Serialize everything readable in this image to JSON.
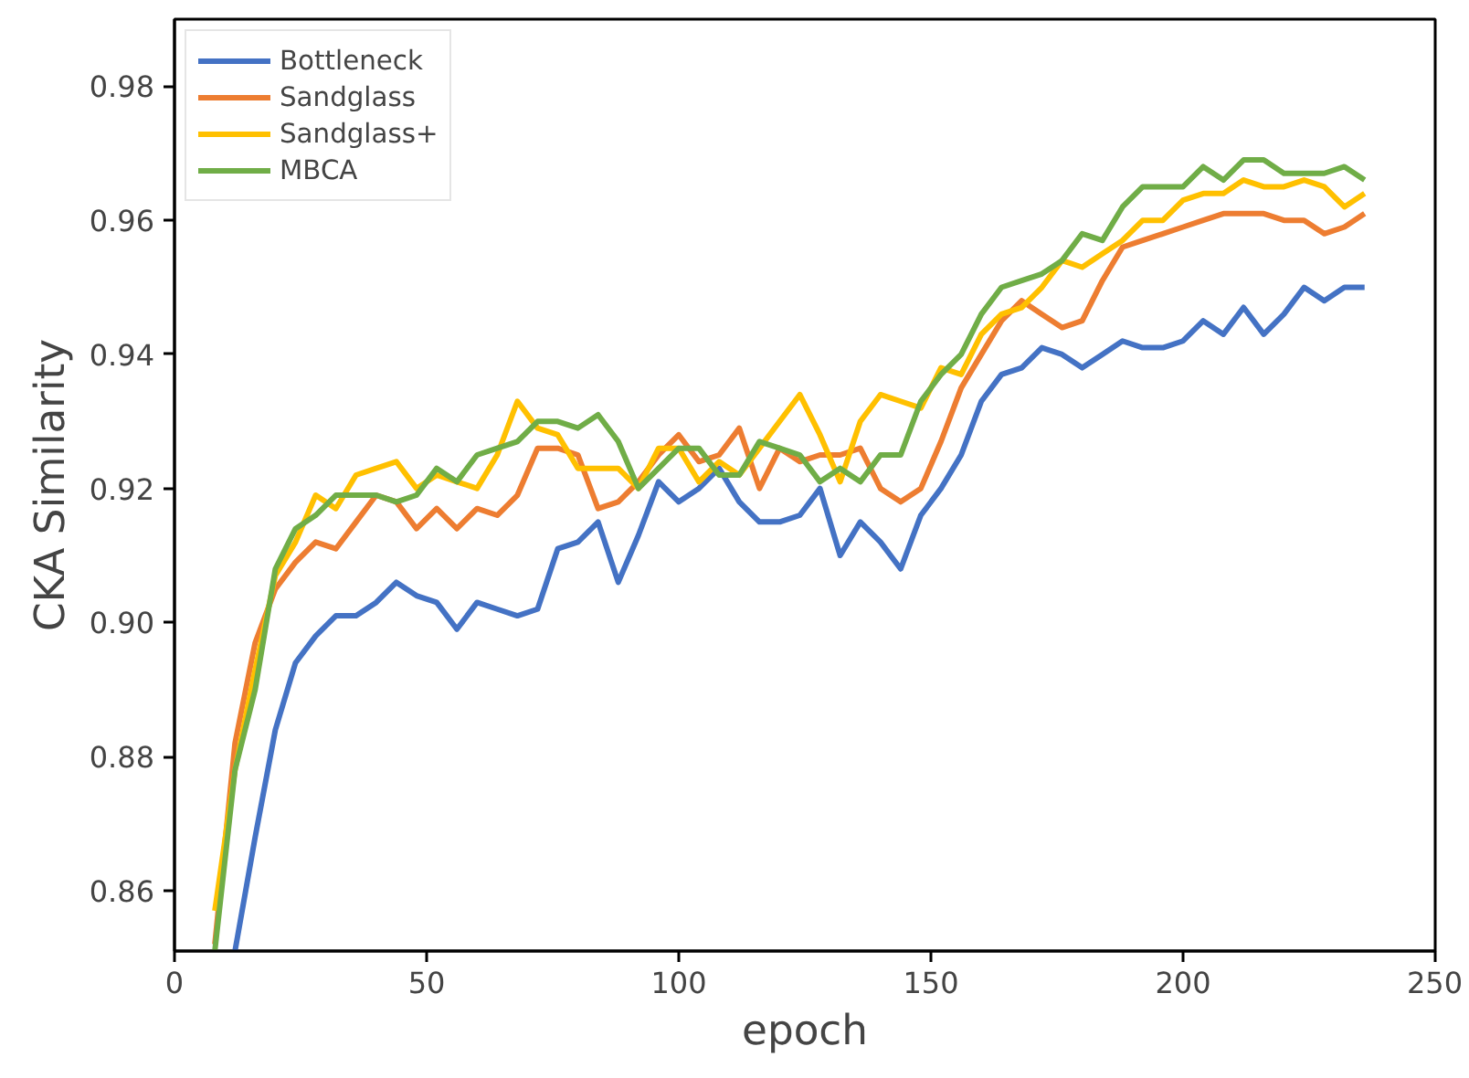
{
  "chart_data": {
    "type": "line",
    "xlabel": "epoch",
    "ylabel": "CKA Similarity",
    "x": [
      8,
      12,
      16,
      20,
      24,
      28,
      32,
      36,
      40,
      44,
      48,
      52,
      56,
      60,
      64,
      68,
      72,
      76,
      80,
      84,
      88,
      92,
      96,
      100,
      104,
      108,
      112,
      116,
      120,
      124,
      128,
      132,
      136,
      140,
      144,
      148,
      152,
      156,
      160,
      164,
      168,
      172,
      176,
      180,
      184,
      188,
      192,
      196,
      200,
      204,
      208,
      212,
      216,
      220,
      224,
      228,
      232,
      236
    ],
    "xlim": [
      0,
      250
    ],
    "xticks": [
      0,
      50,
      100,
      150,
      200,
      250
    ],
    "ylim": [
      0.851,
      0.99
    ],
    "yticks": [
      {
        "value": 0.86,
        "label": "0.86"
      },
      {
        "value": 0.88,
        "label": "0.88"
      },
      {
        "value": 0.9,
        "label": "0.90"
      },
      {
        "value": 0.92,
        "label": "0.92"
      },
      {
        "value": 0.94,
        "label": "0.94"
      },
      {
        "value": 0.96,
        "label": "0.96"
      },
      {
        "value": 0.98,
        "label": "0.98"
      }
    ],
    "grid": false,
    "legend": "top left",
    "line_style": "solid",
    "marker": "none",
    "series": [
      {
        "name": "Bottleneck",
        "color": "#4472c4",
        "values": [
          null,
          0.851,
          0.868,
          0.884,
          0.894,
          0.898,
          0.901,
          0.901,
          0.903,
          0.906,
          0.904,
          0.903,
          0.899,
          0.903,
          0.902,
          0.901,
          0.902,
          0.911,
          0.912,
          0.915,
          0.906,
          0.913,
          0.921,
          0.918,
          0.92,
          0.923,
          0.918,
          0.915,
          0.915,
          0.916,
          0.92,
          0.91,
          0.915,
          0.912,
          0.908,
          0.916,
          0.92,
          0.925,
          0.933,
          0.937,
          0.938,
          0.941,
          0.94,
          0.938,
          0.94,
          0.942,
          0.941,
          0.941,
          0.942,
          0.945,
          0.943,
          0.947,
          0.943,
          0.946,
          0.95,
          0.948,
          0.95,
          0.95
        ]
      },
      {
        "name": "Sandglass",
        "color": "#ed7d31",
        "values": [
          0.852,
          0.882,
          0.897,
          0.905,
          0.909,
          0.912,
          0.911,
          0.915,
          0.919,
          0.918,
          0.914,
          0.917,
          0.914,
          0.917,
          0.916,
          0.919,
          0.926,
          0.926,
          0.925,
          0.917,
          0.918,
          0.921,
          0.925,
          0.928,
          0.924,
          0.925,
          0.929,
          0.92,
          0.926,
          0.924,
          0.925,
          0.925,
          0.926,
          0.92,
          0.918,
          0.92,
          0.927,
          0.935,
          0.94,
          0.945,
          0.948,
          0.946,
          0.944,
          0.945,
          0.951,
          0.956,
          0.957,
          0.958,
          0.959,
          0.96,
          0.961,
          0.961,
          0.961,
          0.96,
          0.96,
          0.958,
          0.959,
          0.961
        ]
      },
      {
        "name": "Sandglass+",
        "color": "#ffc000",
        "values": [
          0.857,
          0.878,
          0.893,
          0.907,
          0.912,
          0.919,
          0.917,
          0.922,
          0.923,
          0.924,
          0.92,
          0.922,
          0.921,
          0.92,
          0.925,
          0.933,
          0.929,
          0.928,
          0.923,
          0.923,
          0.923,
          0.92,
          0.926,
          0.926,
          0.921,
          0.924,
          0.922,
          0.926,
          0.93,
          0.934,
          0.928,
          0.921,
          0.93,
          0.934,
          0.933,
          0.932,
          0.938,
          0.937,
          0.943,
          0.946,
          0.947,
          0.95,
          0.954,
          0.953,
          0.955,
          0.957,
          0.96,
          0.96,
          0.963,
          0.964,
          0.964,
          0.966,
          0.965,
          0.965,
          0.966,
          0.965,
          0.962,
          0.964
        ]
      },
      {
        "name": "MBCA",
        "color": "#70ad47",
        "values": [
          0.851,
          0.878,
          0.89,
          0.908,
          0.914,
          0.916,
          0.919,
          0.919,
          0.919,
          0.918,
          0.919,
          0.923,
          0.921,
          0.925,
          0.926,
          0.927,
          0.93,
          0.93,
          0.929,
          0.931,
          0.927,
          0.92,
          0.923,
          0.926,
          0.926,
          0.922,
          0.922,
          0.927,
          0.926,
          0.925,
          0.921,
          0.923,
          0.921,
          0.925,
          0.925,
          0.933,
          0.937,
          0.94,
          0.946,
          0.95,
          0.951,
          0.952,
          0.954,
          0.958,
          0.957,
          0.962,
          0.965,
          0.965,
          0.965,
          0.968,
          0.966,
          0.969,
          0.969,
          0.967,
          0.967,
          0.967,
          0.968,
          0.966
        ]
      }
    ]
  }
}
